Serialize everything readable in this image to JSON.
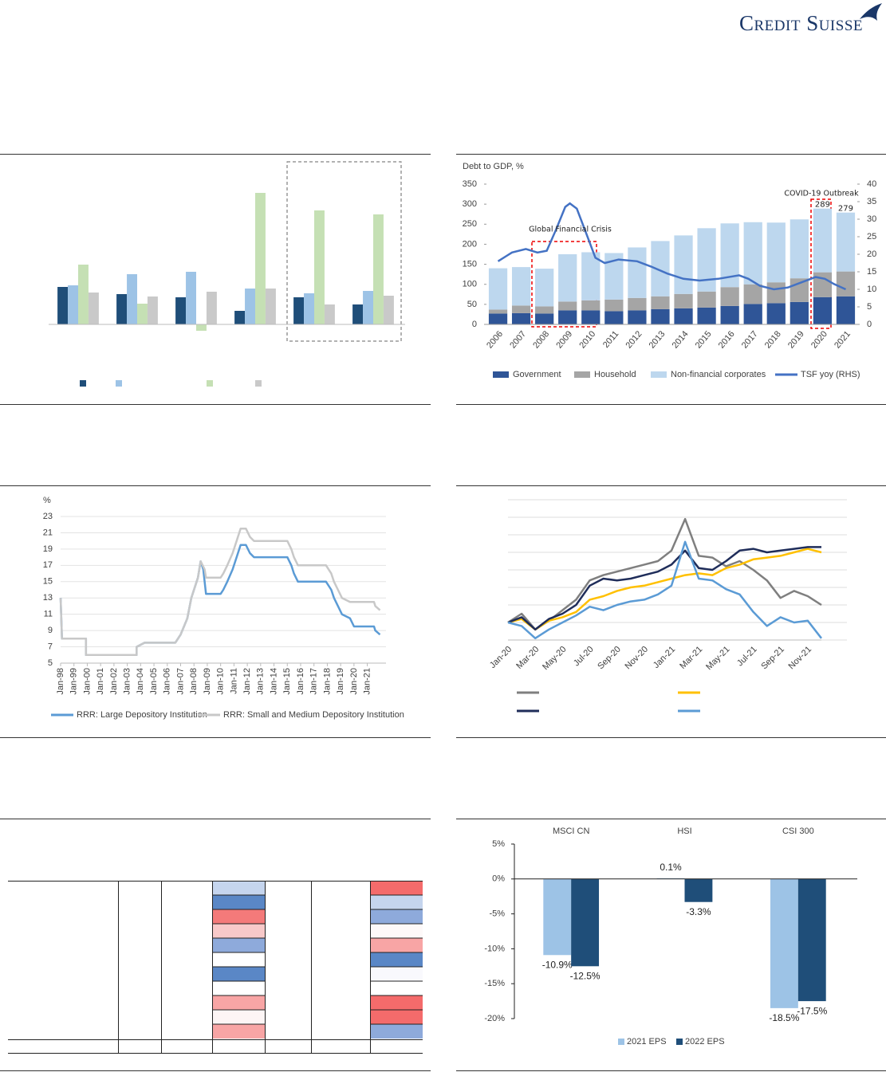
{
  "logo": "Credit Suisse",
  "chart_data": [
    {
      "type": "bar",
      "ylim": [
        -20,
        185
      ],
      "series": [
        {
          "color": "#1f4e79",
          "values": [
            47,
            38,
            34,
            17,
            34,
            25
          ]
        },
        {
          "color": "#9dc3e6",
          "values": [
            49,
            63,
            66,
            45,
            39,
            42
          ]
        },
        {
          "color": "#c5e0b4",
          "values": [
            75,
            26,
            -8,
            165,
            143,
            138
          ]
        },
        {
          "color": "#c9c9c9",
          "values": [
            40,
            35,
            41,
            45,
            25,
            36
          ]
        }
      ]
    },
    {
      "type": "combo",
      "y_title": "Debt to GDP, %",
      "x": [
        2006,
        2007,
        2008,
        2009,
        2010,
        2011,
        2012,
        2013,
        2014,
        2015,
        2016,
        2017,
        2018,
        2019,
        2020,
        2021
      ],
      "xlim": [
        2005.5,
        2021.5
      ],
      "ylim": [
        0,
        350
      ],
      "yticks": [
        0,
        50,
        100,
        150,
        200,
        250,
        300,
        350
      ],
      "y2lim": [
        0,
        40
      ],
      "y2ticks": [
        0,
        5,
        10,
        15,
        20,
        25,
        30,
        35,
        40
      ],
      "series": [
        {
          "name": "Government",
          "color": "#2f5597",
          "values": [
            27,
            28,
            27,
            35,
            35,
            33,
            35,
            38,
            40,
            42,
            46,
            51,
            53,
            56,
            68,
            70
          ]
        },
        {
          "name": "Household",
          "color": "#a5a5a5",
          "values": [
            10,
            19,
            18,
            22,
            25,
            29,
            31,
            32,
            36,
            40,
            47,
            49,
            52,
            59,
            62,
            62
          ]
        },
        {
          "name": "Non-financial corporates",
          "color": "#bdd7ee",
          "values": [
            103,
            96,
            94,
            118,
            120,
            116,
            126,
            138,
            146,
            158,
            159,
            155,
            149,
            147,
            159,
            147
          ]
        },
        {
          "name": "TSF yoy (RHS)",
          "color": "#4472c4",
          "axis": "y2",
          "x": [
            2006,
            2006.6,
            2007.2,
            2007.7,
            2008.1,
            2008.5,
            2008.9,
            2009.1,
            2009.4,
            2009.8,
            2010.2,
            2010.6,
            2011.2,
            2012,
            2012.6,
            2013.3,
            2014,
            2014.7,
            2015.5,
            2016.4,
            2016.8,
            2017.3,
            2017.9,
            2018.5,
            2019.1,
            2019.7,
            2020.1,
            2020.5,
            2021
          ],
          "values": [
            18,
            20.5,
            21.5,
            20.5,
            21,
            27,
            33.5,
            34.5,
            33,
            26,
            19,
            17.5,
            18.5,
            18,
            16.5,
            14.5,
            13,
            12.5,
            13,
            14,
            13,
            11,
            10,
            10.5,
            12,
            13.5,
            13,
            11.5,
            10
          ]
        }
      ],
      "annotations": [
        "Global Financial Crisis",
        "COVID-19 Outbreak"
      ],
      "total_labels": [
        {
          "x": 2020,
          "value": 289
        },
        {
          "x": 2021,
          "value": 279
        }
      ]
    },
    {
      "type": "line",
      "y_title": "%",
      "xlim": [
        1998,
        2022.4
      ],
      "xticks": [
        {
          "value": 1998,
          "label": "Jan-98"
        },
        {
          "value": 1999,
          "label": "Jan-99"
        },
        {
          "value": 2000,
          "label": "Jan-00"
        },
        {
          "value": 2001,
          "label": "Jan-01"
        },
        {
          "value": 2002,
          "label": "Jan-02"
        },
        {
          "value": 2003,
          "label": "Jan-03"
        },
        {
          "value": 2004,
          "label": "Jan-04"
        },
        {
          "value": 2005,
          "label": "Jan-05"
        },
        {
          "value": 2006,
          "label": "Jan-06"
        },
        {
          "value": 2007,
          "label": "Jan-07"
        },
        {
          "value": 2008,
          "label": "Jan-08"
        },
        {
          "value": 2009,
          "label": "Jan-09"
        },
        {
          "value": 2010,
          "label": "Jan-10"
        },
        {
          "value": 2011,
          "label": "Jan-11"
        },
        {
          "value": 2012,
          "label": "Jan-12"
        },
        {
          "value": 2013,
          "label": "Jan-13"
        },
        {
          "value": 2014,
          "label": "Jan-14"
        },
        {
          "value": 2015,
          "label": "Jan-15"
        },
        {
          "value": 2016,
          "label": "Jan-16"
        },
        {
          "value": 2017,
          "label": "Jan-17"
        },
        {
          "value": 2018,
          "label": "Jan-18"
        },
        {
          "value": 2019,
          "label": "Jan-19"
        },
        {
          "value": 2020,
          "label": "Jan-20"
        },
        {
          "value": 2021,
          "label": "Jan-21"
        }
      ],
      "ylim": [
        5,
        23
      ],
      "yticks": [
        5,
        7,
        9,
        11,
        13,
        15,
        17,
        19,
        21,
        23
      ],
      "grid": true,
      "series": [
        {
          "name": "RRR: Large Depository Institution",
          "color": "#5b9bd5",
          "x": [
            1998.0,
            1998.1,
            1999.9,
            1999.9,
            2003.7,
            2003.7,
            2004.3,
            2006.6,
            2007.0,
            2007.5,
            2007.8,
            2008.3,
            2008.5,
            2008.7,
            2008.9,
            2010.0,
            2010.2,
            2010.5,
            2010.9,
            2011.2,
            2011.5,
            2011.9,
            2012.2,
            2012.5,
            2015.0,
            2015.3,
            2015.5,
            2015.8,
            2017.9,
            2018.3,
            2018.5,
            2018.8,
            2019.1,
            2019.7,
            2020.0,
            2021.5,
            2021.6,
            2021.95
          ],
          "values": [
            13,
            8,
            8,
            6,
            6,
            7,
            7.5,
            7.5,
            8.5,
            10.5,
            13,
            15.5,
            17.5,
            16.5,
            13.5,
            13.5,
            14,
            15,
            16.5,
            18,
            19.5,
            19.5,
            18.5,
            18,
            18,
            17,
            16,
            15,
            15,
            14,
            13,
            12,
            11,
            10.5,
            9.5,
            9.5,
            9,
            8.5
          ]
        },
        {
          "name": "RRR: Small and Medium Depository Institution",
          "color": "#c8c8c8",
          "x": [
            1998.0,
            1998.1,
            1999.9,
            1999.9,
            2003.7,
            2003.7,
            2004.3,
            2006.6,
            2007.0,
            2007.5,
            2007.8,
            2008.3,
            2008.5,
            2008.8,
            2008.9,
            2010.0,
            2010.2,
            2010.5,
            2010.9,
            2011.2,
            2011.5,
            2011.9,
            2012.2,
            2012.5,
            2015.0,
            2015.3,
            2015.5,
            2015.8,
            2017.9,
            2018.3,
            2018.5,
            2018.8,
            2019.1,
            2019.7,
            2021.5,
            2021.6,
            2021.95
          ],
          "values": [
            13,
            8,
            8,
            6,
            6,
            7,
            7.5,
            7.5,
            8.5,
            10.5,
            13,
            15.5,
            17.5,
            16.5,
            15.5,
            15.5,
            16,
            17,
            18.5,
            20,
            21.5,
            21.5,
            20.5,
            20,
            20,
            19,
            18,
            17,
            17,
            16,
            15,
            14,
            13,
            12.5,
            12.5,
            12,
            11.5
          ]
        }
      ]
    },
    {
      "type": "line",
      "ylim": [
        0,
        8
      ],
      "categories": [
        "Jan-20",
        null,
        "Mar-20",
        null,
        "May-20",
        null,
        "Jul-20",
        null,
        "Sep-20",
        null,
        "Nov-20",
        null,
        "Jan-21",
        null,
        "Mar-21",
        null,
        "May-21",
        null,
        "Jul-21",
        null,
        "Sep-21",
        null,
        "Nov-21",
        null
      ],
      "series": [
        {
          "color": "#7f7f7f",
          "values": [
            1,
            1.5,
            0.6,
            1.1,
            1.7,
            2.3,
            3.4,
            3.7,
            3.9,
            4.1,
            4.3,
            4.5,
            5.1,
            6.9,
            4.8,
            4.7,
            4.2,
            4.5,
            4.0,
            3.4,
            2.4,
            2.8,
            2.5,
            2.0
          ]
        },
        {
          "color": "#ffc000",
          "values": [
            1,
            1.2,
            0.6,
            1.1,
            1.3,
            1.6,
            2.3,
            2.5,
            2.8,
            3.0,
            3.1,
            3.3,
            3.5,
            3.7,
            3.8,
            3.7,
            4.1,
            4.3,
            4.6,
            4.7,
            4.8,
            5.0,
            5.2,
            5.0
          ]
        },
        {
          "color": "#1f2d5a",
          "values": [
            1,
            1.3,
            0.6,
            1.2,
            1.5,
            2.0,
            3.1,
            3.5,
            3.4,
            3.5,
            3.7,
            3.9,
            4.3,
            5.1,
            4.1,
            4.0,
            4.5,
            5.1,
            5.2,
            5.0,
            5.1,
            5.2,
            5.3,
            5.3
          ]
        },
        {
          "color": "#5b9bd5",
          "values": [
            1,
            0.8,
            0.1,
            0.6,
            1.0,
            1.4,
            1.9,
            1.7,
            2.0,
            2.2,
            2.3,
            2.6,
            3.1,
            5.6,
            3.5,
            3.4,
            2.9,
            2.6,
            1.6,
            0.8,
            1.3,
            1.0,
            1.1,
            0.1
          ]
        }
      ]
    },
    {
      "type": "bar",
      "categories": [
        "MSCI CN",
        "HSI",
        "CSI 300"
      ],
      "ylim": [
        -20,
        5
      ],
      "yticks": [
        {
          "value": 5,
          "label": "5%"
        },
        {
          "value": 0,
          "label": "0%"
        },
        {
          "value": -5,
          "label": "-5%"
        },
        {
          "value": -10,
          "label": "-10%"
        },
        {
          "value": -15,
          "label": "-15%"
        },
        {
          "value": -20,
          "label": "-20%"
        }
      ],
      "series": [
        {
          "name": "2021 EPS",
          "color": "#9dc3e6",
          "values": [
            -10.9,
            0.1,
            -18.5
          ],
          "value_labels": [
            "-10.9%",
            "0.1%",
            "-18.5%"
          ]
        },
        {
          "name": "2022 EPS",
          "color": "#1f4e79",
          "values": [
            -12.5,
            -3.3,
            -17.5
          ],
          "value_labels": [
            "-12.5%",
            "-3.3%",
            "-17.5%"
          ]
        }
      ]
    }
  ]
}
